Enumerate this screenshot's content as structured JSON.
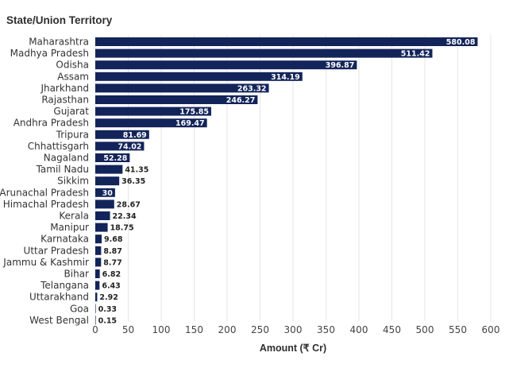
{
  "chart_data": {
    "type": "bar",
    "orientation": "horizontal",
    "title": "State/Union Territory",
    "xlabel": "Amount (₹ Cr)",
    "ylabel": "",
    "categories": [
      "Maharashtra",
      "Madhya Pradesh",
      "Odisha",
      "Assam",
      "Jharkhand",
      "Rajasthan",
      "Gujarat",
      "Andhra Pradesh",
      "Tripura",
      "Chhattisgarh",
      "Nagaland",
      "Tamil Nadu",
      "Sikkim",
      "Arunachal Pradesh",
      "Himachal Pradesh",
      "Kerala",
      "Manipur",
      "Karnataka",
      "Uttar Pradesh",
      "Jammu & Kashmir",
      "Bihar",
      "Telangana",
      "Uttarakhand",
      "Goa",
      "West Bengal"
    ],
    "values": [
      580.08,
      511.42,
      396.87,
      314.19,
      263.32,
      246.27,
      175.85,
      169.47,
      81.69,
      74.02,
      52.28,
      41.35,
      36.35,
      30,
      28.67,
      22.34,
      18.75,
      9.68,
      8.87,
      8.77,
      6.82,
      6.43,
      2.92,
      0.33,
      0.15
    ],
    "value_labels": [
      "580.08",
      "511.42",
      "396.87",
      "314.19",
      "263.32",
      "246.27",
      "175.85",
      "169.47",
      "81.69",
      "74.02",
      "52.28",
      "41.35",
      "36.35",
      "30",
      "28.67",
      "22.34",
      "18.75",
      "9.68",
      "8.87",
      "8.77",
      "6.82",
      "6.43",
      "2.92",
      "0.33",
      "0.15"
    ],
    "xlim": [
      0,
      600
    ],
    "xticks": [
      0,
      50,
      100,
      150,
      200,
      250,
      300,
      350,
      400,
      450,
      500,
      550,
      600
    ],
    "bar_color": "#13245a",
    "grid": true,
    "legend": "none"
  }
}
